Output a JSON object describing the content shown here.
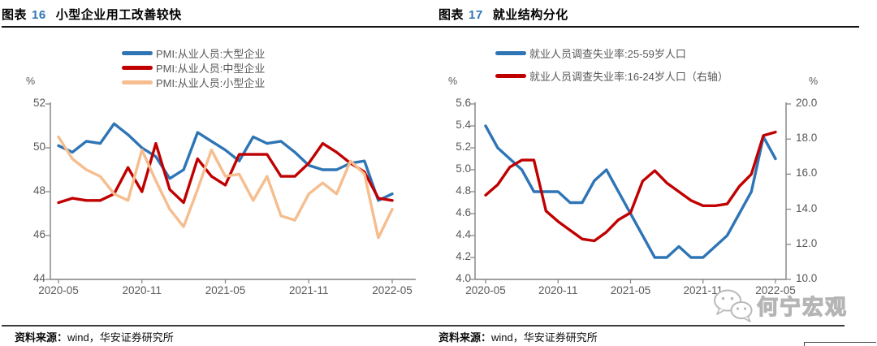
{
  "page": {
    "header": {
      "left": {
        "prefix": "图表",
        "number": "16",
        "title": "小型企业用工改善较快"
      },
      "right": {
        "prefix": "图表",
        "number": "17",
        "title": "就业结构分化"
      }
    },
    "footer": {
      "left_source_label": "资料来源：",
      "left_source_text": "wind，华安证券研究所",
      "right_source_label": "资料来源：",
      "right_source_text": "wind，华安证券研究所"
    },
    "units": {
      "left_chart_y": "%",
      "right_chart_y_left": "%",
      "right_chart_y_right": "%"
    },
    "watermark": {
      "icon": "wechat-icon",
      "text": "何宁宏观"
    },
    "colors": {
      "accent_number": "#2e75b6",
      "blue": "#2e75b6",
      "red": "#c00000",
      "orange": "#f6bd8e",
      "axis": "#808080",
      "tick_text": "#595959"
    }
  },
  "chart_data": [
    {
      "type": "line",
      "title": "图表 16 小型企业用工改善较快",
      "ylabel": "%",
      "ylim": [
        44,
        52
      ],
      "yticks": [
        "44",
        "46",
        "48",
        "50",
        "52"
      ],
      "grid": false,
      "legend_position": "top-center",
      "x": [
        "2020-05",
        "2020-06",
        "2020-07",
        "2020-08",
        "2020-09",
        "2020-10",
        "2020-11",
        "2020-12",
        "2021-01",
        "2021-02",
        "2021-03",
        "2021-04",
        "2021-05",
        "2021-06",
        "2021-07",
        "2021-08",
        "2021-09",
        "2021-10",
        "2021-11",
        "2021-12",
        "2022-01",
        "2022-02",
        "2022-03",
        "2022-04",
        "2022-05"
      ],
      "x_tick_labels": [
        "2020-05",
        "2020-11",
        "2021-05",
        "2021-11",
        "2022-05"
      ],
      "series": [
        {
          "name": "PMI:从业人员:大型企业",
          "color": "#2e75b6",
          "values": [
            50.1,
            49.8,
            50.3,
            50.2,
            51.1,
            50.6,
            50.0,
            49.6,
            48.6,
            49.0,
            50.7,
            50.3,
            49.9,
            49.4,
            50.5,
            50.2,
            50.3,
            49.8,
            49.2,
            49.0,
            49.0,
            49.3,
            49.4,
            47.6,
            47.9
          ]
        },
        {
          "name": "PMI:从业人员:中型企业",
          "color": "#c00000",
          "values": [
            47.5,
            47.7,
            47.6,
            47.6,
            47.9,
            49.1,
            48.0,
            50.2,
            48.1,
            47.5,
            49.5,
            48.7,
            48.3,
            49.7,
            49.7,
            49.7,
            48.7,
            48.7,
            49.3,
            50.2,
            49.8,
            49.3,
            48.9,
            47.7,
            47.6
          ]
        },
        {
          "name": "PMI:从业人员:小型企业",
          "color": "#f6bd8e",
          "values": [
            50.5,
            49.5,
            49.0,
            48.7,
            47.9,
            47.6,
            49.9,
            48.5,
            47.2,
            46.4,
            48.1,
            49.9,
            48.7,
            48.8,
            47.6,
            48.7,
            46.9,
            46.7,
            47.9,
            48.4,
            47.9,
            49.4,
            48.8,
            45.9,
            47.2
          ]
        }
      ],
      "source": "资料来源：wind，华安证券研究所"
    },
    {
      "type": "line",
      "title": "图表 17 就业结构分化",
      "ylabel": "%",
      "ylabel_right": "%",
      "ylim": [
        4.0,
        5.6
      ],
      "yticks": [
        "4.0",
        "4.2",
        "4.4",
        "4.6",
        "4.8",
        "5.0",
        "5.2",
        "5.4",
        "5.6"
      ],
      "y2lim": [
        10.0,
        20.0
      ],
      "y2ticks": [
        "10.0",
        "12.0",
        "14.0",
        "16.0",
        "18.0",
        "20.0"
      ],
      "grid": false,
      "legend_position": "top-center",
      "x": [
        "2020-05",
        "2020-06",
        "2020-07",
        "2020-08",
        "2020-09",
        "2020-10",
        "2020-11",
        "2020-12",
        "2021-01",
        "2021-02",
        "2021-03",
        "2021-04",
        "2021-05",
        "2021-06",
        "2021-07",
        "2021-08",
        "2021-09",
        "2021-10",
        "2021-11",
        "2021-12",
        "2022-01",
        "2022-02",
        "2022-03",
        "2022-04",
        "2022-05"
      ],
      "x_tick_labels": [
        "2020-05",
        "2020-11",
        "2021-05",
        "2021-11",
        "2022-05"
      ],
      "series": [
        {
          "name": "就业人员调查失业率:25-59岁人口",
          "color": "#2e75b6",
          "axis": "left",
          "values": [
            5.4,
            5.2,
            5.1,
            5.0,
            4.8,
            4.8,
            4.8,
            4.7,
            4.7,
            4.9,
            5.0,
            4.8,
            4.6,
            4.4,
            4.2,
            4.2,
            4.3,
            4.2,
            4.2,
            4.3,
            4.4,
            4.6,
            4.8,
            5.3,
            5.1
          ]
        },
        {
          "name": "就业人员调查失业率:16-24岁人口（右轴）",
          "color": "#c00000",
          "axis": "right",
          "values": [
            14.8,
            15.4,
            16.4,
            16.8,
            16.8,
            13.9,
            13.3,
            12.8,
            12.3,
            12.2,
            12.7,
            13.4,
            13.8,
            15.6,
            16.2,
            15.5,
            15.0,
            14.5,
            14.2,
            14.2,
            14.3,
            15.3,
            16.0,
            18.2,
            18.4
          ]
        }
      ],
      "source": "资料来源：wind，华安证券研究所"
    }
  ]
}
